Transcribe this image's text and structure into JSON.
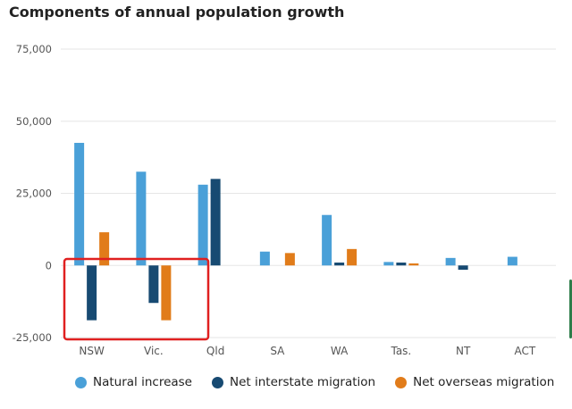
{
  "title": "Components of annual population growth",
  "colors": {
    "natural": "#4aa0d8",
    "interstate": "#174a72",
    "overseas": "#e17c1a",
    "grid": "#e6e6e6",
    "highlight": "#e02020"
  },
  "chart_data": {
    "type": "bar",
    "title": "Components of annual population growth",
    "categories": [
      "NSW",
      "Vic.",
      "Qld",
      "SA",
      "WA",
      "Tas.",
      "NT",
      "ACT"
    ],
    "yticks": [
      "75,000",
      "50,000",
      "25,000",
      "0",
      "-25,000"
    ],
    "ylim": [
      -25000,
      75000
    ],
    "grid": true,
    "legend_position": "bottom",
    "series": [
      {
        "name": "Natural increase",
        "color": "#4aa0d8",
        "values": [
          42500,
          32500,
          28000,
          4800,
          17500,
          1200,
          2600,
          3000
        ]
      },
      {
        "name": "Net interstate migration",
        "color": "#174a72",
        "values": [
          -19000,
          -13000,
          30000,
          0,
          1000,
          1000,
          -1500,
          0
        ]
      },
      {
        "name": "Net overseas migration",
        "color": "#e17c1a",
        "values": [
          11500,
          -19000,
          0,
          4300,
          5700,
          700,
          0,
          0
        ]
      }
    ]
  }
}
